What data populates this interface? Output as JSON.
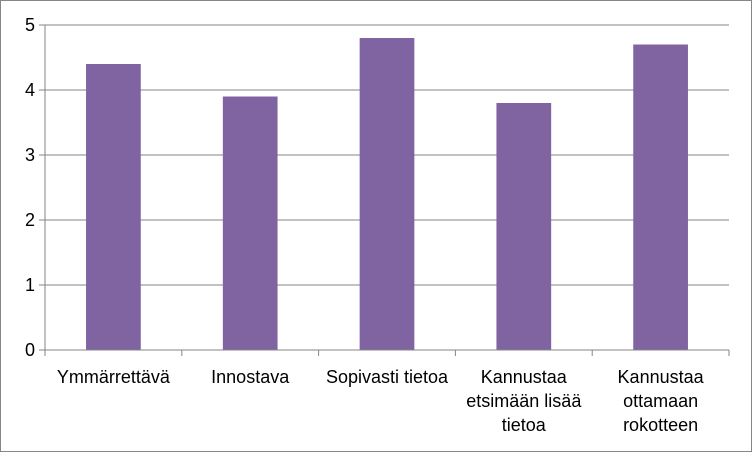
{
  "chart_data": {
    "type": "bar",
    "title": "",
    "xlabel": "",
    "ylabel": "",
    "categories": [
      "Ymmärrettävä",
      "Innostava",
      "Sopivasti tietoa",
      "Kannustaa etsimään lisää tietoa",
      "Kannustaa ottamaan rokotteen"
    ],
    "category_lines": [
      [
        "Ymmärrettävä"
      ],
      [
        "Innostava"
      ],
      [
        "Sopivasti tietoa"
      ],
      [
        "Kannustaa",
        "etsimään lisää",
        "tietoa"
      ],
      [
        "Kannustaa",
        "ottamaan",
        "rokotteen"
      ]
    ],
    "values": [
      4.4,
      3.9,
      4.8,
      3.8,
      4.7
    ],
    "ylim": [
      0,
      5
    ],
    "yticks": [
      0,
      1,
      2,
      3,
      4,
      5
    ],
    "grid": true,
    "legend": "none",
    "colors": {
      "bar": "#8064a2",
      "grid": "#868686",
      "axis": "#868686"
    }
  }
}
